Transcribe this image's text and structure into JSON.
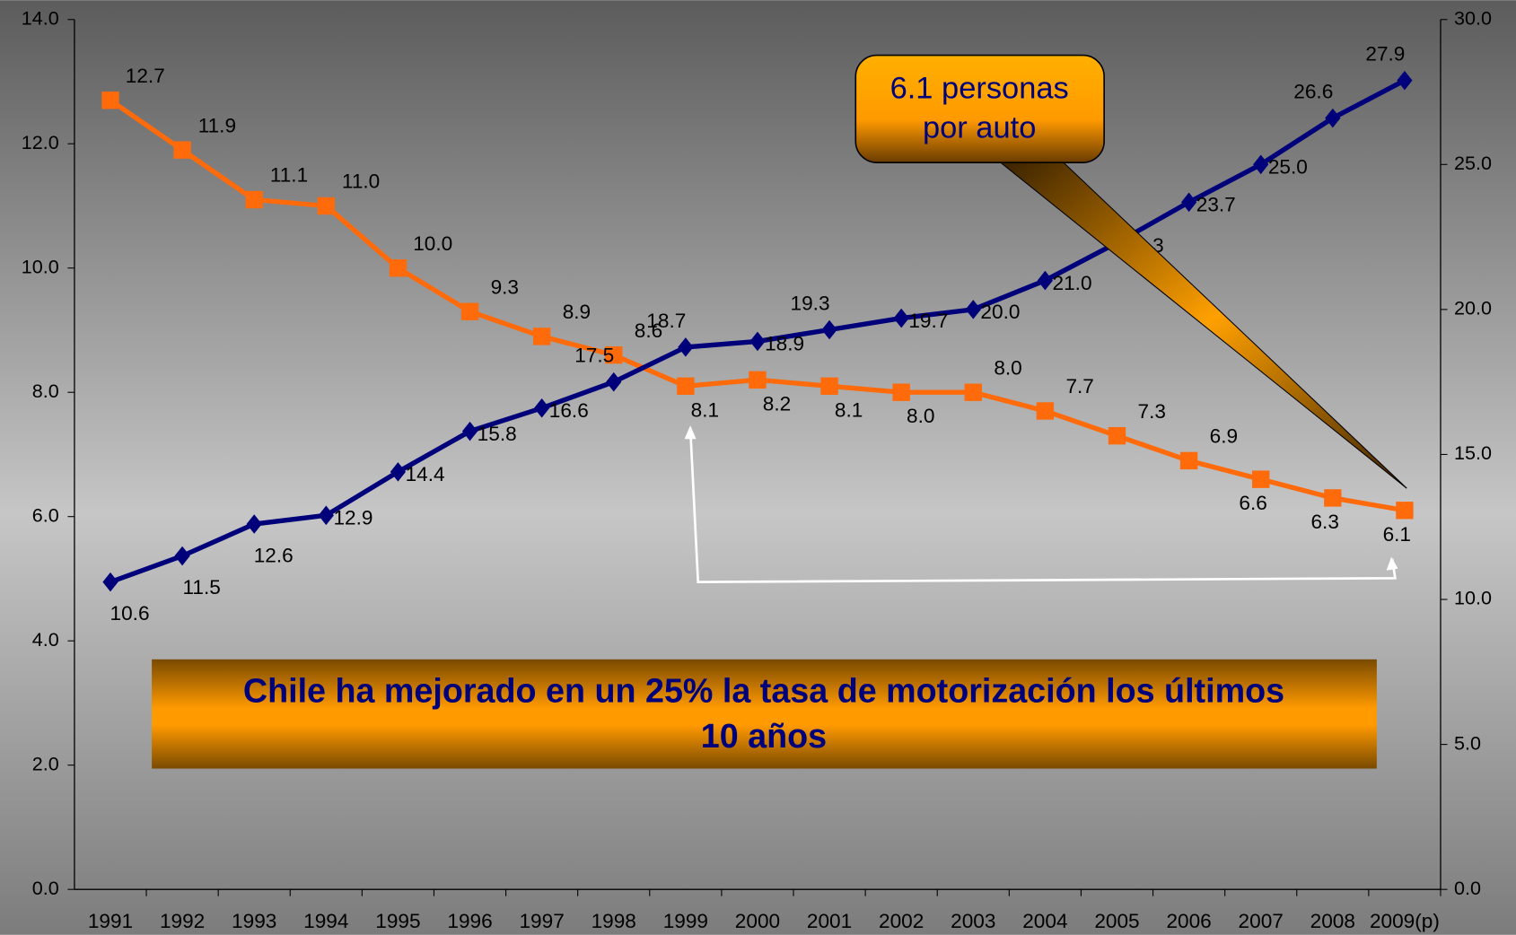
{
  "chart_data": {
    "type": "line",
    "categories": [
      "1991",
      "1992",
      "1993",
      "1994",
      "1995",
      "1996",
      "1997",
      "1998",
      "1999",
      "2000",
      "2001",
      "2002",
      "2003",
      "2004",
      "2005",
      "2006",
      "2007",
      "2008",
      "2009(p)"
    ],
    "series": [
      {
        "color": "#ff6a0a",
        "marker": "square",
        "values": [
          12.7,
          11.9,
          11.1,
          11.0,
          10.0,
          9.3,
          8.9,
          8.6,
          8.1,
          8.2,
          8.1,
          8.0,
          8.0,
          7.7,
          7.3,
          6.9,
          6.6,
          6.3,
          6.1
        ],
        "value_labels": [
          "12.7",
          "11.9",
          "11.1",
          "11.0",
          "10.0",
          "9.3",
          "8.9",
          "8.6",
          "8.1",
          "8.2",
          "8.1",
          "8.0",
          "8.0",
          "7.7",
          "7.3",
          "6.9",
          "6.6",
          "6.3",
          "6.1"
        ]
      },
      {
        "color": "#00007a",
        "marker": "diamond",
        "axis": "y2",
        "values": [
          10.6,
          11.5,
          12.6,
          12.9,
          14.4,
          15.8,
          16.6,
          17.5,
          18.7,
          18.9,
          19.3,
          19.7,
          20.0,
          21.0,
          22.3,
          23.7,
          25.0,
          26.6,
          27.9
        ],
        "value_labels": [
          "10.6",
          "11.5",
          "12.6",
          "12.9",
          "14.4",
          "15.8",
          "16.6",
          "17.5",
          "18.7",
          "18.9",
          "19.3",
          "19.7",
          "20.0",
          "21.0",
          "22.3",
          "23.7",
          "25.0",
          "26.6",
          "27.9"
        ]
      }
    ],
    "ylim": [
      0,
      14
    ],
    "yticks": [
      {
        "value": 0,
        "label": "0.0"
      },
      {
        "value": 2,
        "label": "2.0"
      },
      {
        "value": 4,
        "label": "4.0"
      },
      {
        "value": 6,
        "label": "6.0"
      },
      {
        "value": 8,
        "label": "8.0"
      },
      {
        "value": 10,
        "label": "10.0"
      },
      {
        "value": 12,
        "label": "12.0"
      },
      {
        "value": 14,
        "label": "14.0"
      }
    ],
    "y2lim": [
      0,
      30
    ],
    "y2ticks": [
      {
        "value": 0,
        "label": "0.0"
      },
      {
        "value": 5,
        "label": "5.0"
      },
      {
        "value": 10,
        "label": "10.0"
      },
      {
        "value": 15,
        "label": "15.0"
      },
      {
        "value": 20,
        "label": "20.0"
      },
      {
        "value": 25,
        "label": "25.0"
      },
      {
        "value": 30,
        "label": "30.0"
      }
    ],
    "annotations": {
      "callout": [
        "6.1 personas",
        "por auto"
      ],
      "banner": [
        "Chile ha mejorado en un 25% la tasa de motorización los últimos",
        "10 años"
      ]
    }
  }
}
